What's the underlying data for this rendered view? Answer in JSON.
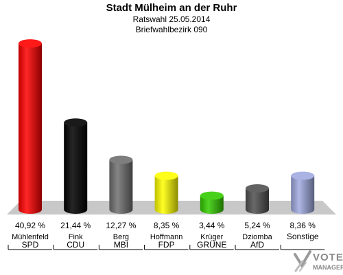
{
  "header": {
    "title": "Stadt Mülheim an der Ruhr",
    "subtitle1": "Ratswahl 25.05.2014",
    "subtitle2": "Briefwahlbezirk 090"
  },
  "logo": {
    "line1": "VOTE",
    "line2": "MANAGER"
  },
  "chart_data": {
    "type": "bar",
    "title": "Stadt Mülheim an der Ruhr",
    "subtitle": "Ratswahl 25.05.2014 / Briefwahlbezirk 090",
    "value_labels": [
      "40,92 %",
      "21,44 %",
      "12,27 %",
      "8,35 %",
      "3,44 %",
      "5,24 %",
      "8,36 %"
    ],
    "candidates": [
      "Mühlenfeld",
      "Fink",
      "Berg",
      "Hoffmann",
      "Krüger",
      "Dziomba",
      ""
    ],
    "categories": [
      "SPD",
      "CDU",
      "MBI",
      "FDP",
      "GRÜNE",
      "AfD",
      "Sonstige"
    ],
    "values": [
      40.92,
      21.44,
      12.27,
      8.35,
      3.44,
      5.24,
      8.36
    ],
    "colors": [
      "#ff0000",
      "#000000",
      "#707070",
      "#ffff00",
      "#33cc00",
      "#505050",
      "#a0aae0"
    ],
    "ylim": [
      0,
      42
    ]
  }
}
